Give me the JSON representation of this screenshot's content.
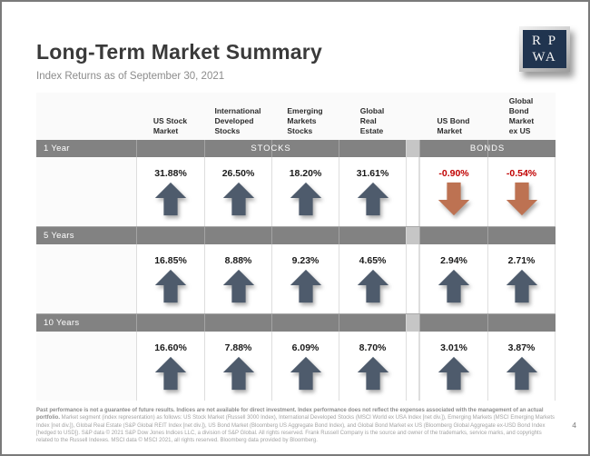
{
  "header": {
    "title": "Long-Term Market Summary",
    "subtitle": "Index Returns as of September 30, 2021",
    "logo": {
      "line1": "R P",
      "line2": "WA"
    }
  },
  "table": {
    "group_labels": {
      "stocks": "STOCKS",
      "bonds": "BONDS"
    },
    "columns": [
      {
        "id": "us-stock-market",
        "lines": [
          "US Stock",
          "Market"
        ]
      },
      {
        "id": "international-developed-stocks",
        "lines": [
          "International",
          "Developed",
          "Stocks"
        ]
      },
      {
        "id": "emerging-markets-stocks",
        "lines": [
          "Emerging",
          "Markets",
          "Stocks"
        ]
      },
      {
        "id": "global-real-estate",
        "lines": [
          "Global",
          "Real",
          "Estate"
        ]
      },
      {
        "id": "us-bond-market",
        "lines": [
          "US Bond",
          "Market"
        ]
      },
      {
        "id": "global-bond-market-ex-us",
        "lines": [
          "Global",
          "Bond",
          "Market",
          "ex US"
        ]
      }
    ],
    "rows": [
      {
        "period": "1 Year",
        "values": [
          {
            "pct": "31.88%",
            "dir": "up"
          },
          {
            "pct": "26.50%",
            "dir": "up"
          },
          {
            "pct": "18.20%",
            "dir": "up"
          },
          {
            "pct": "31.61%",
            "dir": "up"
          },
          {
            "pct": "-0.90%",
            "dir": "down"
          },
          {
            "pct": "-0.54%",
            "dir": "down"
          }
        ]
      },
      {
        "period": "5 Years",
        "values": [
          {
            "pct": "16.85%",
            "dir": "up"
          },
          {
            "pct": "8.88%",
            "dir": "up"
          },
          {
            "pct": "9.23%",
            "dir": "up"
          },
          {
            "pct": "4.65%",
            "dir": "up"
          },
          {
            "pct": "2.94%",
            "dir": "up"
          },
          {
            "pct": "2.71%",
            "dir": "up"
          }
        ]
      },
      {
        "period": "10 Years",
        "values": [
          {
            "pct": "16.60%",
            "dir": "up"
          },
          {
            "pct": "7.88%",
            "dir": "up"
          },
          {
            "pct": "6.09%",
            "dir": "up"
          },
          {
            "pct": "8.70%",
            "dir": "up"
          },
          {
            "pct": "3.01%",
            "dir": "up"
          },
          {
            "pct": "3.87%",
            "dir": "up"
          }
        ]
      }
    ]
  },
  "footnote": {
    "bold": "Past performance is not a guarantee of future results. Indices are not available for direct investment. Index performance does not reflect the expenses associated with the management of an actual portfolio.",
    "regular": "Market segment (index representation) as follows: US Stock Market (Russell 3000 Index), International Developed Stocks (MSCI World ex USA Index [net div.]), Emerging Markets (MSCI Emerging Markets Index [net div.]), Global Real Estate (S&P Global REIT Index [net div.]), US Bond Market (Bloomberg US Aggregate Bond Index), and Global Bond Market ex US (Bloomberg Global Aggregate ex-USD Bond Index [hedged to USD]). S&P data © 2021 S&P Dow Jones Indices LLC, a division of S&P Global. All rights reserved. Frank Russell Company is the source and owner of the trademarks, service marks, and copyrights related to the Russell Indexes. MSCI data © MSCI 2021, all rights reserved. Bloomberg data provided by Bloomberg."
  },
  "page": {
    "number": "4"
  },
  "colors": {
    "up_arrow": "#4e5b6c",
    "down_arrow": "#bd7252",
    "negative_value": "#c00000",
    "band_gray": "#828282",
    "band_gap_gray": "#c6c6c6",
    "logo_navy": "#20344f"
  }
}
